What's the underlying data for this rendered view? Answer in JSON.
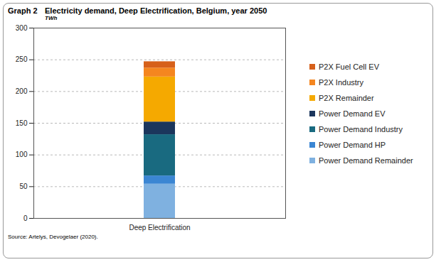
{
  "chart_data": {
    "type": "bar",
    "figure_label": "Graph 2",
    "title": "Electricity demand, Deep Electrification, Belgium, year 2050",
    "subtitle": "TWh",
    "caption": "Source:    Artelys, Devogelaer (2020).",
    "stacked": true,
    "categories": [
      "Deep Electrification"
    ],
    "series": [
      {
        "name": "Power Demand Remainder",
        "color": "#7fb1e0",
        "values": [
          54
        ]
      },
      {
        "name": "Power Demand HP",
        "color": "#3b86d3",
        "values": [
          13
        ]
      },
      {
        "name": "Power Demand Industry",
        "color": "#196a80",
        "values": [
          65
        ]
      },
      {
        "name": "Power Demand EV",
        "color": "#1b365c",
        "values": [
          20
        ]
      },
      {
        "name": "P2X Remainder",
        "color": "#f5a900",
        "values": [
          71
        ]
      },
      {
        "name": "P2X Industry",
        "color": "#f5861f",
        "values": [
          14
        ]
      },
      {
        "name": "P2X Fuel Cell EV",
        "color": "#d6601a",
        "values": [
          10
        ]
      }
    ],
    "ylim": [
      0,
      300
    ],
    "yticks": [
      0,
      50,
      100,
      150,
      200,
      250,
      300
    ],
    "grid": true,
    "legend": "right"
  }
}
